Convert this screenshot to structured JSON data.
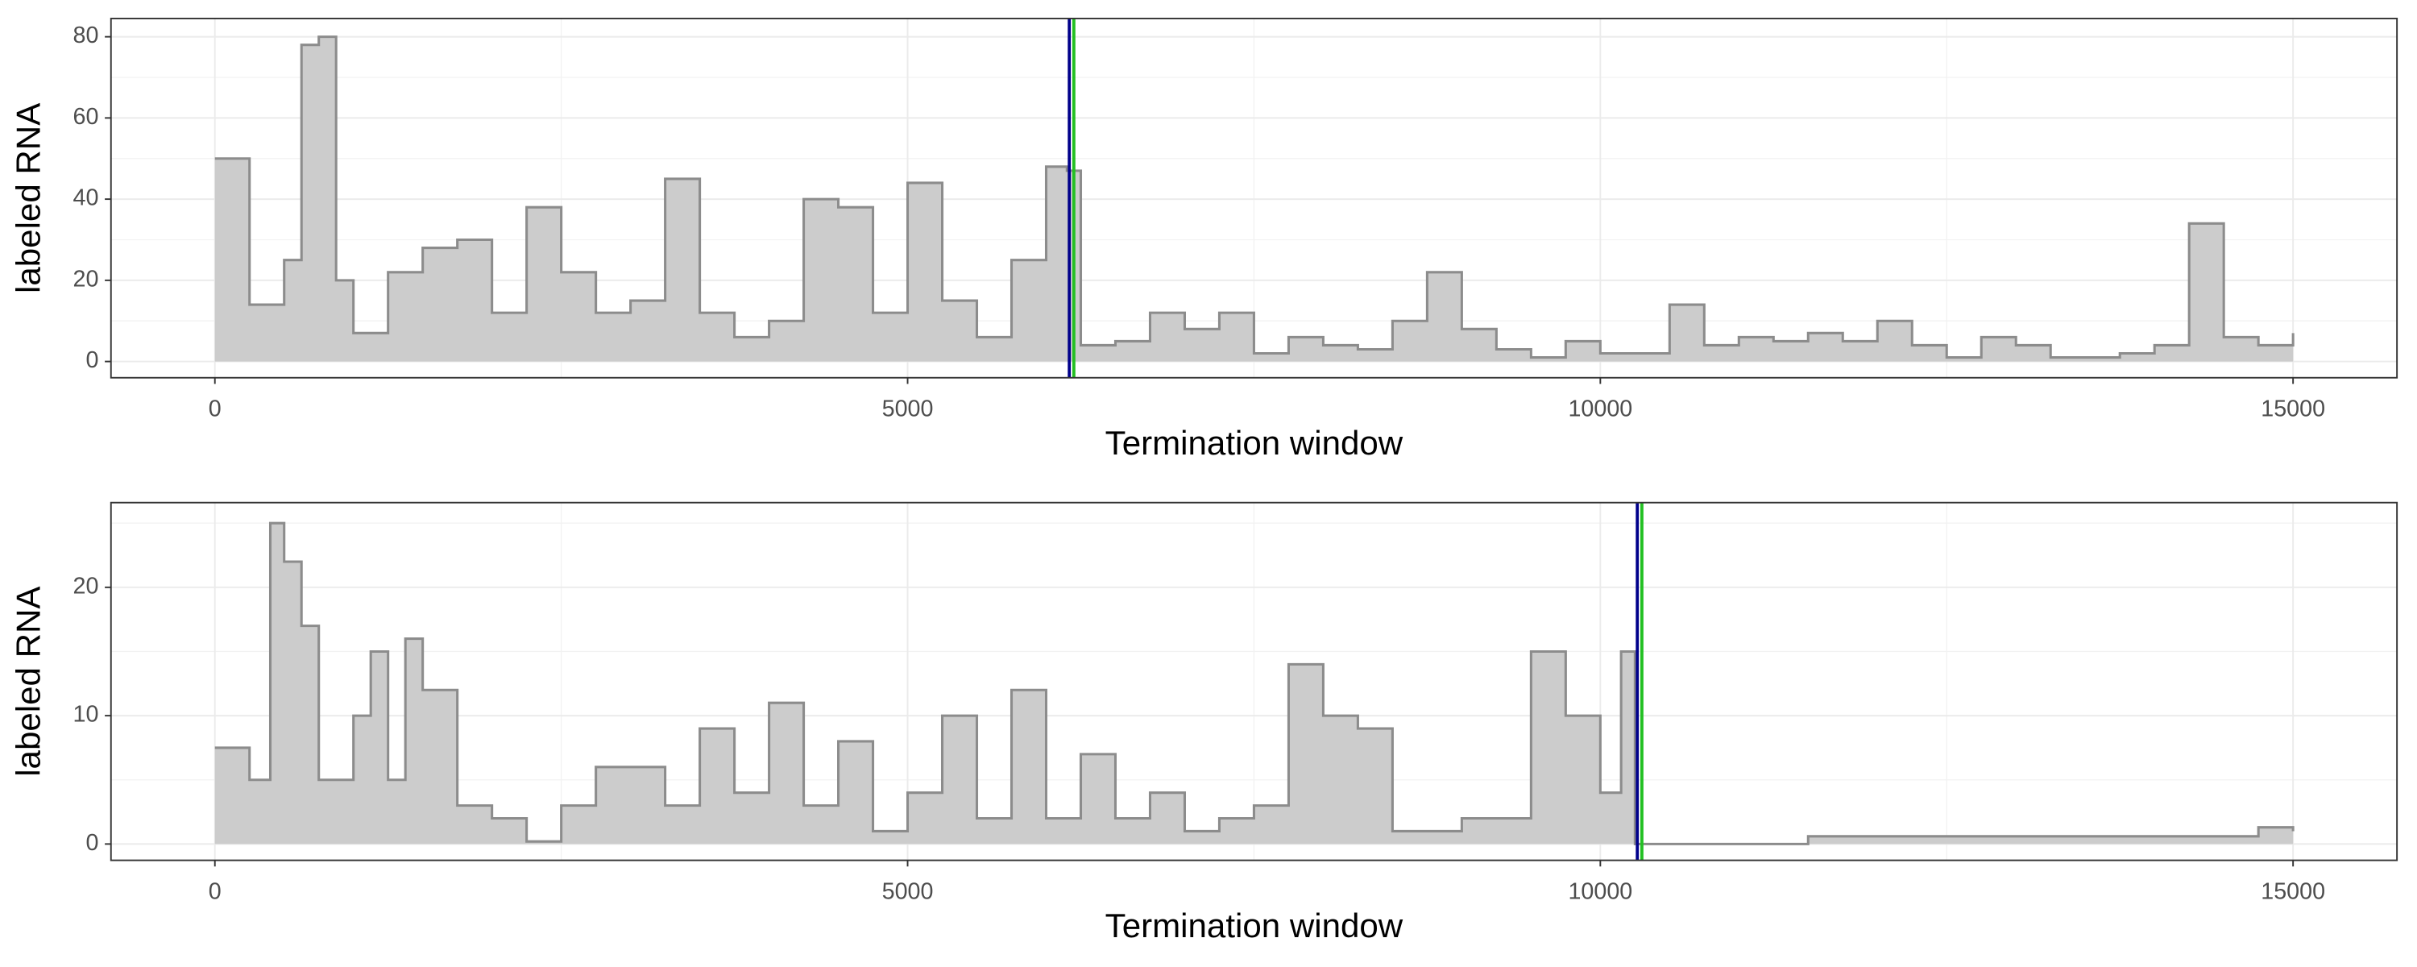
{
  "chart_data": [
    {
      "type": "step_area",
      "xlabel": "Termination window",
      "ylabel": "labeled RNA",
      "fill": "#cccccc",
      "line_color": "#8c8c8c",
      "grid": true,
      "x": [
        0,
        250,
        500,
        625,
        750,
        875,
        1000,
        1250,
        1500,
        1750,
        2000,
        2250,
        2500,
        2750,
        3000,
        3250,
        3500,
        3750,
        4000,
        4250,
        4500,
        4750,
        5000,
        5250,
        5500,
        5750,
        6000,
        6150,
        6250,
        6500,
        6750,
        7000,
        7250,
        7500,
        7750,
        8000,
        8250,
        8500,
        8750,
        9000,
        9250,
        9500,
        9750,
        10000,
        10250,
        10500,
        10750,
        11000,
        11250,
        11500,
        11750,
        12000,
        12250,
        12500,
        12750,
        13000,
        13250,
        13500,
        13750,
        14000,
        14250,
        14500,
        14750,
        15000
      ],
      "values": [
        50,
        14,
        25,
        78,
        80,
        20,
        7,
        22,
        28,
        30,
        12,
        38,
        22,
        12,
        15,
        45,
        12,
        6,
        10,
        40,
        38,
        12,
        44,
        15,
        6,
        25,
        48,
        47,
        4,
        5,
        12,
        8,
        12,
        2,
        6,
        4,
        3,
        10,
        22,
        8,
        3,
        1,
        5,
        2,
        2,
        14,
        4,
        6,
        5,
        7,
        5,
        10,
        4,
        1,
        6,
        4,
        1,
        1,
        2,
        4,
        34,
        6,
        4,
        7
      ],
      "xlim": [
        -750,
        15750
      ],
      "ylim": [
        -4,
        84.5
      ],
      "xticks": [
        0,
        5000,
        10000,
        15000
      ],
      "yticks": [
        0,
        20,
        40,
        60,
        80
      ],
      "xminor": [
        2500,
        7500,
        12500
      ],
      "yminor": [
        10,
        30,
        50,
        70
      ],
      "vlines": [
        {
          "value": 6167,
          "color": "#00008b"
        },
        {
          "value": 6200,
          "color": "#22c022"
        }
      ]
    },
    {
      "type": "step_area",
      "xlabel": "Termination window",
      "ylabel": "labeled RNA",
      "fill": "#cccccc",
      "line_color": "#8c8c8c",
      "grid": true,
      "x": [
        0,
        250,
        400,
        500,
        625,
        750,
        1000,
        1125,
        1250,
        1375,
        1500,
        1750,
        2000,
        2250,
        2500,
        2750,
        3000,
        3250,
        3500,
        3750,
        4000,
        4250,
        4500,
        4750,
        5000,
        5250,
        5500,
        5750,
        6000,
        6250,
        6500,
        6750,
        7000,
        7250,
        7500,
        7750,
        8000,
        8250,
        8500,
        8750,
        9000,
        9250,
        9500,
        9750,
        10000,
        10150,
        10250,
        10500,
        11500,
        12500,
        14750,
        15000
      ],
      "values": [
        7.5,
        5,
        25,
        22,
        17,
        5,
        10,
        15,
        5,
        16,
        12,
        3,
        2,
        0.2,
        3,
        6,
        6,
        3,
        9,
        4,
        11,
        3,
        8,
        1,
        4,
        10,
        2,
        12,
        2,
        7,
        2,
        4,
        1,
        2,
        3,
        14,
        10,
        9,
        1,
        1,
        2,
        2,
        15,
        10,
        4,
        15,
        0,
        0,
        0.6,
        0.6,
        1.3,
        1
      ],
      "xlim": [
        -750,
        15750
      ],
      "ylim": [
        -1.27,
        26.6
      ],
      "xticks": [
        0,
        5000,
        10000,
        15000
      ],
      "yticks": [
        0,
        10,
        20
      ],
      "xminor": [
        2500,
        7500,
        12500
      ],
      "yminor": [
        5,
        15,
        25
      ],
      "vlines": [
        {
          "value": 10267,
          "color": "#00008b"
        },
        {
          "value": 10300,
          "color": "#22c022"
        }
      ]
    }
  ]
}
